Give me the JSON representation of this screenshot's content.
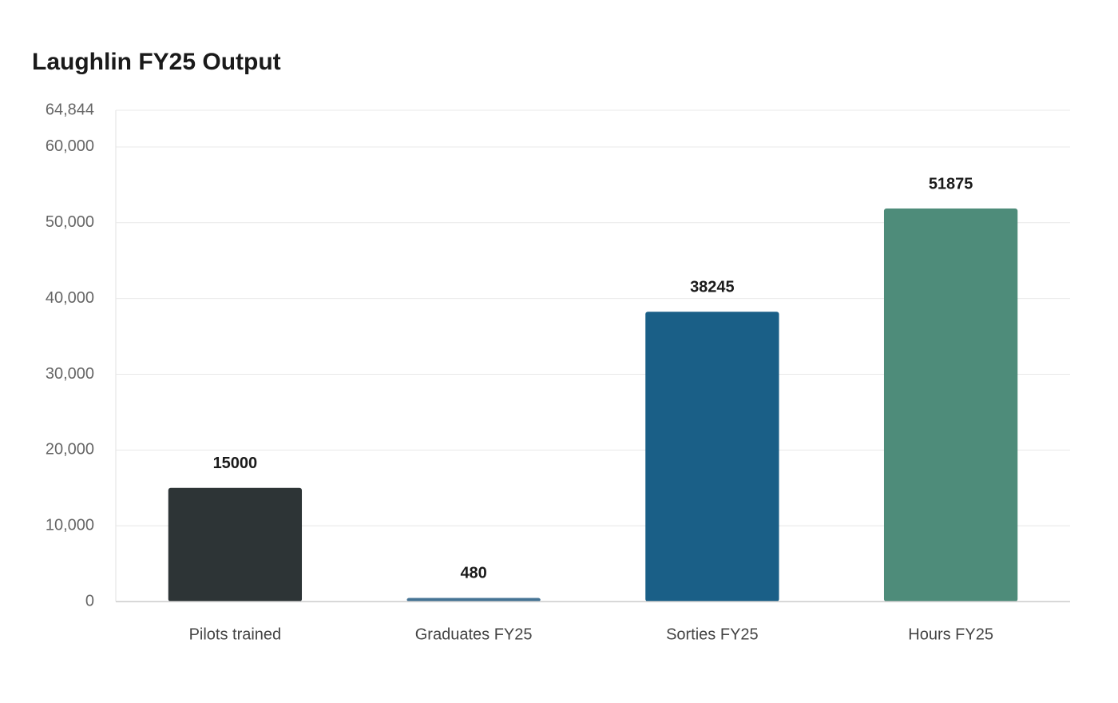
{
  "chart_data": {
    "type": "bar",
    "title": "Laughlin FY25 Output",
    "categories": [
      "Pilots trained",
      "Graduates FY25",
      "Sorties FY25",
      "Hours FY25"
    ],
    "values": [
      15000,
      480,
      38245,
      51875
    ],
    "colors": [
      "#2d3436",
      "#457394",
      "#1a5f87",
      "#4e8c7a"
    ],
    "ylim": [
      0,
      64844
    ],
    "yticks": [
      0,
      {
        "value": 10000,
        "label": "10,000"
      },
      {
        "value": 20000,
        "label": "20,000"
      },
      {
        "value": 30000,
        "label": "30,000"
      },
      {
        "value": 40000,
        "label": "40,000"
      },
      {
        "value": 50000,
        "label": "50,000"
      },
      {
        "value": 60000,
        "label": "60,000"
      },
      {
        "value": 64844,
        "label": "64,844"
      }
    ],
    "grid": true
  }
}
